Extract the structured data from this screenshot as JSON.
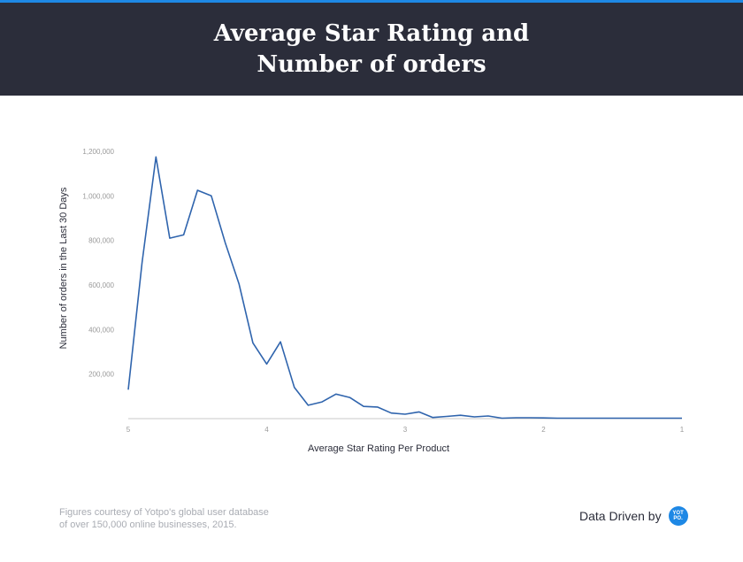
{
  "header": {
    "title_line1": "Average Star Rating and",
    "title_line2": "Number of orders"
  },
  "chart_data": {
    "type": "line",
    "title": "Average Star Rating and Number of orders",
    "xlabel": "Average Star Rating Per Product",
    "ylabel": "Number of orders in the Last 30 Days",
    "x_ticks": [
      "5",
      "4",
      "3",
      "2",
      "1"
    ],
    "y_ticks": [
      "200,000",
      "400,000",
      "600,000",
      "800,000",
      "1,000,000",
      "1,200,000"
    ],
    "xlim": [
      5,
      1
    ],
    "ylim": [
      0,
      1200000
    ],
    "grid": false,
    "series": [
      {
        "x": [
          5.0,
          4.9,
          4.8,
          4.7,
          4.6,
          4.5,
          4.4,
          4.3,
          4.2,
          4.1,
          4.0,
          3.9,
          3.8,
          3.7,
          3.6,
          3.5,
          3.4,
          3.3,
          3.2,
          3.1,
          3.0,
          2.9,
          2.8,
          2.7,
          2.6,
          2.5,
          2.4,
          2.3,
          2.2,
          2.1,
          2.0,
          1.9,
          1.8,
          1.7,
          1.6,
          1.5,
          1.4,
          1.3,
          1.2,
          1.1,
          1.0
        ],
        "y": [
          130000,
          700000,
          1175000,
          810000,
          825000,
          1025000,
          1000000,
          790000,
          605000,
          340000,
          245000,
          345000,
          140000,
          60000,
          75000,
          110000,
          95000,
          55000,
          52000,
          25000,
          20000,
          30000,
          5000,
          10000,
          15000,
          8000,
          12000,
          2000,
          4000,
          4000,
          3000,
          2000,
          2000,
          2000,
          2000,
          2000,
          2000,
          2000,
          2000,
          2000,
          2000
        ],
        "color": "#2f64ad"
      }
    ]
  },
  "footer": {
    "source_line1": "Figures courtesy of Yotpo's global user database",
    "source_line2": "of over 150,000 online businesses, 2015.",
    "brand_text": "Data Driven by",
    "logo_line1": "YOT",
    "logo_line2": "PO."
  }
}
